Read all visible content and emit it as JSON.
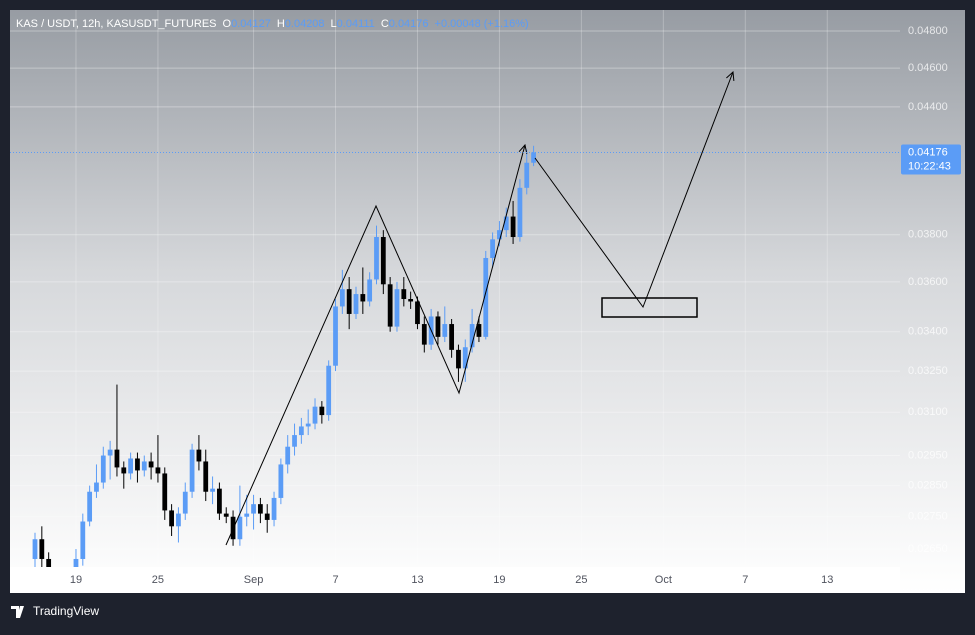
{
  "header": {
    "symbol": "KAS / USDT, 12h, KASUSDT_FUTURES",
    "open_label": "O",
    "open": "0.04127",
    "high_label": "H",
    "high": "0.04208",
    "low_label": "L",
    "low": "0.04111",
    "close_label": "C",
    "close": "0.04176",
    "change": "+0.00048 (+1.16%)",
    "countdown": "10:22:43",
    "brand": "TradingView"
  },
  "chart_data": {
    "type": "candlestick",
    "open": [
      0.0262,
      0.0268,
      0.0262,
      0.0257,
      0.0254,
      0.0256,
      0.0255,
      0.0262,
      0.02735,
      0.0283,
      0.0286,
      0.0295,
      0.0297,
      0.0291,
      0.0289,
      0.0294,
      0.029,
      0.0293,
      0.0291,
      0.0289,
      0.0277,
      0.0272,
      0.0276,
      0.0283,
      0.0297,
      0.0293,
      0.0283,
      0.0284,
      0.0276,
      0.0275,
      0.0268,
      0.0275,
      0.0276,
      0.0279,
      0.0276,
      0.0274,
      0.0281,
      0.0292,
      0.0298,
      0.0302,
      0.0305,
      0.0306,
      0.0312,
      0.0309,
      0.0327,
      0.035,
      0.0357,
      0.0347,
      0.0355,
      0.0352,
      0.0361,
      0.0379,
      0.0359,
      0.0342,
      0.0357,
      0.0353,
      0.0352,
      0.0343,
      0.0335,
      0.0346,
      0.0338,
      0.0343,
      0.0333,
      0.0326,
      0.0334,
      0.0343,
      0.0338,
      0.037,
      0.0378,
      0.0382,
      0.0388,
      0.0379,
      0.0401,
      0.04127
    ],
    "high": [
      0.027,
      0.0272,
      0.0264,
      0.0259,
      0.0258,
      0.0258,
      0.0265,
      0.0276,
      0.0285,
      0.0292,
      0.0298,
      0.03,
      0.032,
      0.0293,
      0.0296,
      0.0296,
      0.0295,
      0.0296,
      0.0302,
      0.0291,
      0.0279,
      0.0278,
      0.0286,
      0.0299,
      0.0302,
      0.0297,
      0.0288,
      0.0286,
      0.0278,
      0.0277,
      0.0285,
      0.0282,
      0.0282,
      0.0281,
      0.0279,
      0.0283,
      0.0294,
      0.0302,
      0.0306,
      0.0308,
      0.0311,
      0.0315,
      0.0314,
      0.0329,
      0.0353,
      0.0365,
      0.0362,
      0.0358,
      0.0366,
      0.0364,
      0.0384,
      0.0382,
      0.0362,
      0.036,
      0.0362,
      0.0356,
      0.0354,
      0.0346,
      0.0349,
      0.0348,
      0.035,
      0.0345,
      0.0335,
      0.0337,
      0.0349,
      0.0346,
      0.0373,
      0.0381,
      0.0386,
      0.0392,
      0.0395,
      0.0405,
      0.0419,
      0.04208
    ],
    "low": [
      0.0258,
      0.0259,
      0.0254,
      0.0251,
      0.0252,
      0.0252,
      0.0253,
      0.026,
      0.0272,
      0.0281,
      0.0284,
      0.0287,
      0.0288,
      0.0284,
      0.0287,
      0.0286,
      0.0288,
      0.0287,
      0.0286,
      0.0274,
      0.0269,
      0.0267,
      0.0274,
      0.0281,
      0.029,
      0.028,
      0.0279,
      0.0274,
      0.0273,
      0.0266,
      0.0266,
      0.0272,
      0.0271,
      0.0273,
      0.027,
      0.0272,
      0.0279,
      0.0289,
      0.0295,
      0.0299,
      0.0302,
      0.0304,
      0.0306,
      0.0307,
      0.0325,
      0.0347,
      0.0341,
      0.0345,
      0.0347,
      0.035,
      0.0359,
      0.0355,
      0.034,
      0.034,
      0.035,
      0.0349,
      0.0341,
      0.0332,
      0.0333,
      0.0335,
      0.0336,
      0.033,
      0.0321,
      0.0321,
      0.0332,
      0.0336,
      0.0337,
      0.0366,
      0.0375,
      0.0379,
      0.0376,
      0.0377,
      0.0398,
      0.04111
    ],
    "close": [
      0.0268,
      0.0262,
      0.0257,
      0.0254,
      0.0256,
      0.0255,
      0.0262,
      0.02735,
      0.0283,
      0.0286,
      0.0295,
      0.0297,
      0.0291,
      0.0289,
      0.0294,
      0.029,
      0.0293,
      0.0291,
      0.0289,
      0.0277,
      0.0272,
      0.0276,
      0.0283,
      0.0297,
      0.0293,
      0.0283,
      0.0284,
      0.0276,
      0.0275,
      0.0268,
      0.0275,
      0.0276,
      0.0279,
      0.0276,
      0.0274,
      0.0281,
      0.0292,
      0.0298,
      0.0302,
      0.0305,
      0.0306,
      0.0312,
      0.0309,
      0.0327,
      0.035,
      0.0357,
      0.0347,
      0.0355,
      0.0352,
      0.0361,
      0.0379,
      0.0359,
      0.0342,
      0.0357,
      0.0353,
      0.0352,
      0.0343,
      0.0335,
      0.0346,
      0.0338,
      0.0343,
      0.0333,
      0.0326,
      0.0334,
      0.0343,
      0.0338,
      0.037,
      0.0378,
      0.0382,
      0.0388,
      0.0379,
      0.0401,
      0.04127,
      0.04176
    ],
    "up_color": "#5b9cf6",
    "down_color": "#000000",
    "log_scale": true,
    "grid": true,
    "ylim": [
      0.02596,
      0.04917
    ],
    "yticks": [
      {
        "value": 0.048,
        "label": "0.04800"
      },
      {
        "value": 0.046,
        "label": "0.04600"
      },
      {
        "value": 0.044,
        "label": "0.04400"
      },
      {
        "value": 0.038,
        "label": "0.03800"
      },
      {
        "value": 0.036,
        "label": "0.03600"
      },
      {
        "value": 0.034,
        "label": "0.03400"
      },
      {
        "value": 0.0325,
        "label": "0.03250"
      },
      {
        "value": 0.031,
        "label": "0.03100"
      },
      {
        "value": 0.0295,
        "label": "0.02950"
      },
      {
        "value": 0.0285,
        "label": "0.02850"
      },
      {
        "value": 0.0275,
        "label": "0.02750"
      },
      {
        "value": 0.0265,
        "label": "0.02650"
      }
    ],
    "xlim": [
      -3.66,
      126.65
    ],
    "xticks": [
      {
        "value": 6,
        "label": "19"
      },
      {
        "value": 18,
        "label": "25"
      },
      {
        "value": 32,
        "label": "Sep"
      },
      {
        "value": 44,
        "label": "7"
      },
      {
        "value": 56,
        "label": "13"
      },
      {
        "value": 68,
        "label": "19"
      },
      {
        "value": 80,
        "label": "25"
      },
      {
        "value": 92,
        "label": "Oct"
      },
      {
        "value": 104,
        "label": "7"
      },
      {
        "value": 116,
        "label": "13"
      }
    ],
    "last_price": 0.04176
  }
}
